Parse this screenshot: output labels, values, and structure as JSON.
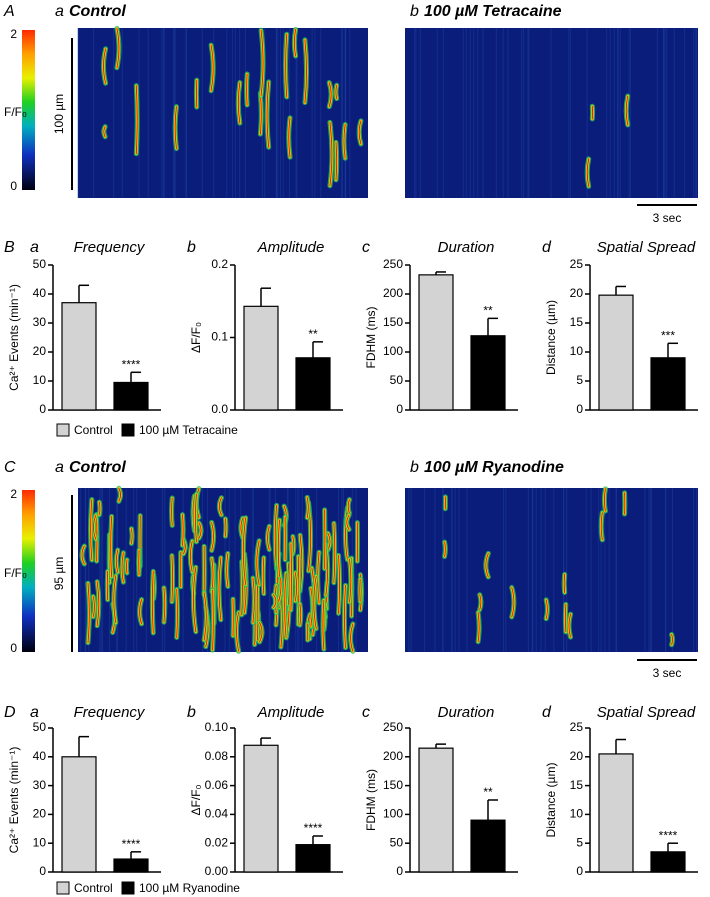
{
  "kymographs": [
    {
      "letter": "A",
      "colorbar": {
        "ticks": [
          2,
          0
        ],
        "label": "F/F₀"
      },
      "scale": "100 µm",
      "time": "3 sec",
      "images": [
        {
          "label": "a",
          "title": "Control"
        },
        {
          "label": "b",
          "title": "100 µM Tetracaine"
        }
      ]
    },
    {
      "letter": "C",
      "colorbar": {
        "ticks": [
          2,
          0
        ],
        "label": "F/F₀"
      },
      "scale": "95 µm",
      "time": "3 sec",
      "images": [
        {
          "label": "a",
          "title": "Control"
        },
        {
          "label": "b",
          "title": "100 µM Ryanodine"
        }
      ]
    }
  ],
  "summaries": [
    {
      "letter": "B",
      "legend": [
        "Control",
        "100 µM Tetracaine"
      ]
    },
    {
      "letter": "D",
      "legend": [
        "Control",
        "100 µM Ryanodine"
      ]
    }
  ],
  "chart_data": [
    {
      "type": "bar",
      "panel": "a",
      "title": "Frequency",
      "ylabel": "Ca²⁺ Events (min⁻¹)",
      "values": [
        37,
        9.5
      ],
      "errors": [
        6,
        3.5
      ],
      "colors": [
        "#d3d3d3",
        "#000000"
      ],
      "significance": "****",
      "ylim": [
        0,
        50
      ],
      "yticks": [
        0,
        10,
        20,
        30,
        40,
        50
      ]
    },
    {
      "type": "bar",
      "panel": "b",
      "title": "Amplitude",
      "ylabel": "ΔF/F₀",
      "values": [
        0.143,
        0.072
      ],
      "errors": [
        0.025,
        0.022
      ],
      "colors": [
        "#d3d3d3",
        "#000000"
      ],
      "significance": "**",
      "ylim": [
        0,
        0.2
      ],
      "yticks": [
        {
          "value": 0,
          "label": "0.0"
        },
        0.1,
        0.2
      ]
    },
    {
      "type": "bar",
      "panel": "c",
      "title": "Duration",
      "ylabel": "FDHM (ms)",
      "values": [
        233,
        128
      ],
      "errors": [
        5,
        30
      ],
      "colors": [
        "#d3d3d3",
        "#000000"
      ],
      "significance": "**",
      "ylim": [
        0,
        250
      ],
      "yticks": [
        0,
        50,
        100,
        150,
        200,
        250
      ]
    },
    {
      "type": "bar",
      "panel": "d",
      "title": "Spatial Spread",
      "ylabel": "Distance (µm)",
      "values": [
        19.8,
        9
      ],
      "errors": [
        1.5,
        2.5
      ],
      "colors": [
        "#d3d3d3",
        "#000000"
      ],
      "significance": "***",
      "ylim": [
        0,
        25
      ],
      "yticks": [
        0,
        5,
        10,
        15,
        20,
        25
      ]
    },
    {
      "type": "bar",
      "panel": "a",
      "title": "Frequency",
      "ylabel": "Ca²⁺ Events (min⁻¹)",
      "values": [
        40,
        4.5
      ],
      "errors": [
        7,
        2.5
      ],
      "colors": [
        "#d3d3d3",
        "#000000"
      ],
      "significance": "****",
      "ylim": [
        0,
        50
      ],
      "yticks": [
        0,
        10,
        20,
        30,
        40,
        50
      ]
    },
    {
      "type": "bar",
      "panel": "b",
      "title": "Amplitude",
      "ylabel": "ΔF/F₀",
      "values": [
        0.088,
        0.019
      ],
      "errors": [
        0.005,
        0.006
      ],
      "colors": [
        "#d3d3d3",
        "#000000"
      ],
      "significance": "****",
      "ylim": [
        0,
        0.1
      ],
      "yticks": [
        {
          "value": 0,
          "label": "0.00"
        },
        0.02,
        0.04,
        0.06,
        0.08,
        {
          "value": 0.1,
          "label": "0.10"
        }
      ]
    },
    {
      "type": "bar",
      "panel": "c",
      "title": "Duration",
      "ylabel": "FDHM (ms)",
      "values": [
        215,
        90
      ],
      "errors": [
        7,
        35
      ],
      "colors": [
        "#d3d3d3",
        "#000000"
      ],
      "significance": "**",
      "ylim": [
        0,
        250
      ],
      "yticks": [
        0,
        50,
        100,
        150,
        200,
        250
      ]
    },
    {
      "type": "bar",
      "panel": "d",
      "title": "Spatial Spread",
      "ylabel": "Distance (µm)",
      "values": [
        20.5,
        3.5
      ],
      "errors": [
        2.5,
        1.5
      ],
      "colors": [
        "#d3d3d3",
        "#000000"
      ],
      "significance": "****",
      "ylim": [
        0,
        25
      ],
      "yticks": [
        0,
        5,
        10,
        15,
        20,
        25
      ]
    }
  ]
}
